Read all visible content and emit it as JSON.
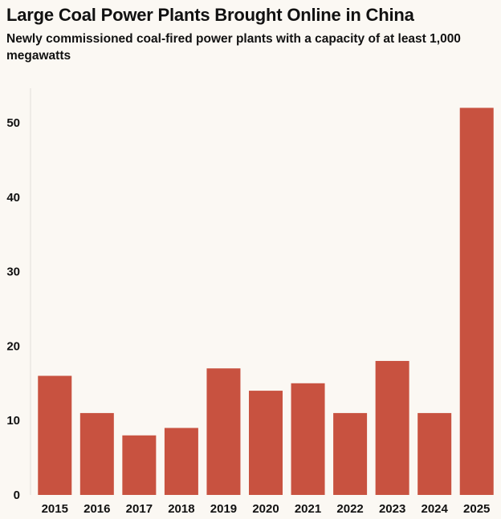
{
  "chart_data": {
    "type": "bar",
    "title": "Large Coal Power Plants Brought Online in China",
    "subtitle": "Newly commissioned coal-fired power plants with a capacity of at least 1,000 megawatts",
    "categories": [
      "2015",
      "2016",
      "2017",
      "2018",
      "2019",
      "2020",
      "2021",
      "2022",
      "2023",
      "2024",
      "2025"
    ],
    "values": [
      16,
      11,
      8,
      9,
      17,
      14,
      15,
      11,
      18,
      11,
      52
    ],
    "ylim": [
      0,
      55
    ],
    "yticks": [
      0,
      10,
      20,
      30,
      40,
      50
    ],
    "grid": false,
    "legend": "none",
    "bar_color": "#c85240"
  }
}
